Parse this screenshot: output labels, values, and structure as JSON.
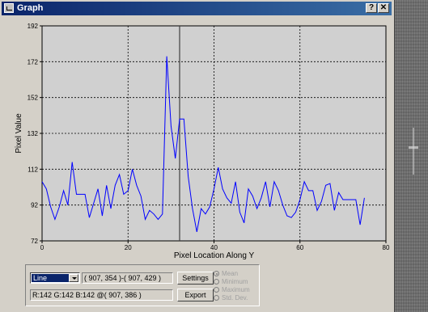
{
  "window": {
    "title": "Graph",
    "help_label": "?",
    "close_label": "✕"
  },
  "controls": {
    "mode_value": "Line",
    "coords": "( 907, 354 )-( 907, 429 )",
    "rgb_readout": "R:142 G:142 B:142 @( 907, 386 )",
    "settings_label": "Settings",
    "export_label": "Export",
    "stat_options": [
      "Mean",
      "Minimum",
      "Maximum",
      "Std. Dev."
    ],
    "selected_stat": "Mean"
  },
  "chart_data": {
    "type": "line",
    "xlabel": "Pixel Location Along Y",
    "ylabel": "Pixel Value",
    "xlim": [
      0,
      80
    ],
    "ylim": [
      72,
      192
    ],
    "xticks": [
      0,
      20,
      40,
      60,
      80
    ],
    "yticks": [
      72,
      92,
      112,
      132,
      152,
      172,
      192
    ],
    "grid": true,
    "cursor_x": 32,
    "line_color": "#0000ff",
    "series": [
      {
        "x": [
          0,
          1,
          2,
          3,
          4,
          5,
          6,
          7,
          8,
          9,
          10,
          11,
          12,
          13,
          14,
          15,
          16,
          17,
          18,
          19,
          20,
          21,
          22,
          23,
          24,
          25,
          26,
          27,
          28,
          29,
          30,
          31,
          32,
          33,
          34,
          35,
          36,
          37,
          38,
          39,
          40,
          41,
          42,
          43,
          44,
          45,
          46,
          47,
          48,
          49,
          50,
          51,
          52,
          53,
          54,
          55,
          56,
          57,
          58,
          59,
          60,
          61,
          62,
          63,
          64,
          65,
          66,
          67,
          68,
          69,
          70,
          71,
          72,
          73,
          74,
          75
        ],
        "y": [
          105,
          101,
          91,
          84,
          91,
          100,
          92,
          116,
          98,
          98,
          98,
          85,
          93,
          101,
          86,
          103,
          90,
          103,
          109,
          98,
          100,
          112,
          103,
          97,
          84,
          89,
          87,
          84,
          87,
          175,
          136,
          118,
          140,
          140,
          108,
          90,
          77,
          90,
          87,
          91,
          101,
          113,
          101,
          96,
          93,
          105,
          88,
          82,
          101,
          97,
          90,
          96,
          105,
          91,
          105,
          100,
          92,
          86,
          85,
          88,
          95,
          105,
          100,
          100,
          89,
          94,
          103,
          104,
          89,
          99,
          95,
          95,
          95,
          95,
          81,
          96
        ]
      }
    ]
  }
}
